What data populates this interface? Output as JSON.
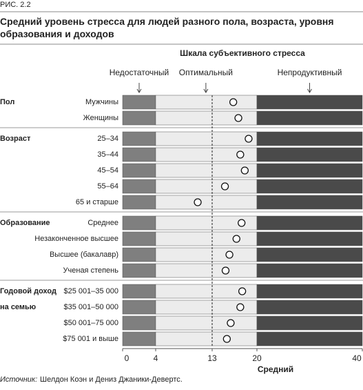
{
  "figure_label": "РИС. 2.2",
  "chart_data": {
    "type": "dot",
    "title": "Средний уровень стресса для людей разного пола, возраста, уровня образования и доходов",
    "scale_title": "Шкала субъективного стресса",
    "zones": [
      {
        "label": "Недостаточный",
        "value": 2
      },
      {
        "label": "Оптимальный",
        "value": 12
      },
      {
        "label": "Непродуктивный",
        "value": 30
      }
    ],
    "bands": [
      {
        "range": [
          0,
          4
        ],
        "color": "#7f7f7f"
      },
      {
        "range": [
          4,
          20
        ],
        "color": "#ececec"
      },
      {
        "range": [
          20,
          40
        ],
        "color": "#4a4a4a"
      }
    ],
    "reference_line": 13,
    "xlim": [
      0,
      40
    ],
    "xticks": [
      0,
      4,
      13,
      20,
      40
    ],
    "xlabel": "Средний",
    "dot_color": "#ffffff",
    "groups": [
      {
        "label_lines": [
          "Пол"
        ],
        "categories": [
          "Мужчины",
          "Женщины"
        ],
        "values": [
          16.3,
          17.1
        ]
      },
      {
        "label_lines": [
          "Возраст"
        ],
        "categories": [
          "25–34",
          "35–44",
          "45–54",
          "55–64",
          "65 и старше"
        ],
        "values": [
          18.7,
          17.4,
          18.1,
          15.0,
          10.7
        ]
      },
      {
        "label_lines": [
          "Образование"
        ],
        "categories": [
          "Среднее",
          "Незаконченное высшее",
          "Высшее (бакалавр)",
          "Ученая степень"
        ],
        "values": [
          17.6,
          16.8,
          15.7,
          15.1
        ]
      },
      {
        "label_lines": [
          "Годовой доход",
          "на семью"
        ],
        "categories": [
          "$25 001–35 000",
          "$35 001–50 000",
          "$50 001–75 000",
          "$75 001 и выше"
        ],
        "values": [
          17.7,
          17.4,
          15.9,
          15.3
        ]
      }
    ],
    "source_label": "Источник:",
    "source": "Шелдон Коэн и Дениз Джаники-Девертс."
  }
}
